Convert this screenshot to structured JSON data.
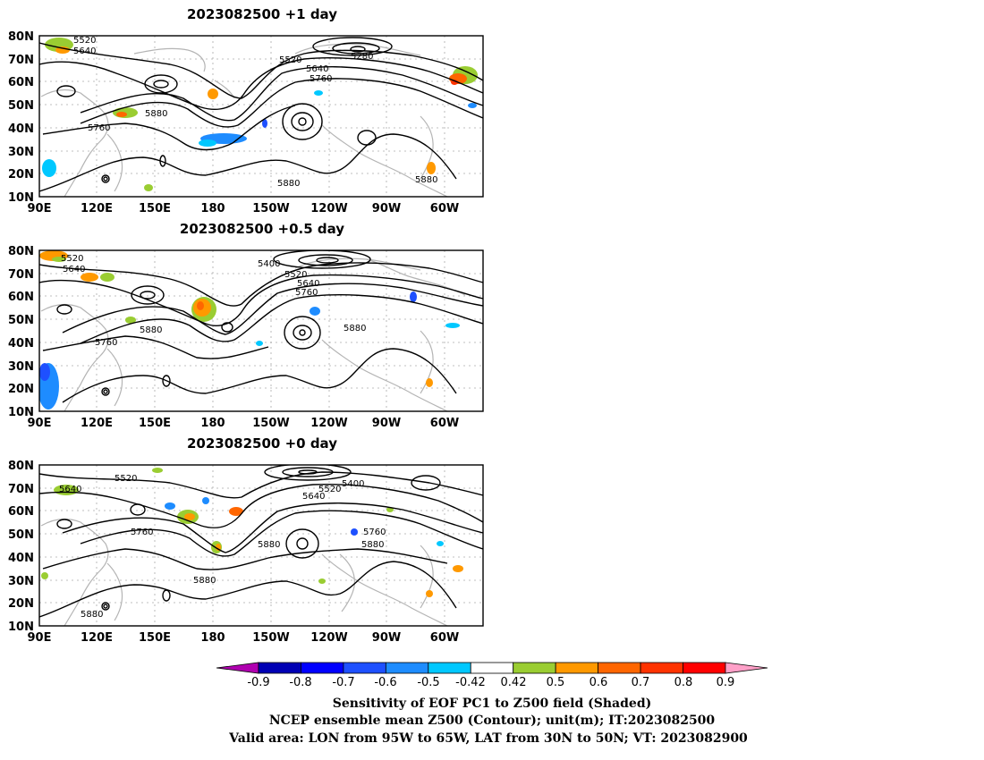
{
  "panels": [
    {
      "title": "2023082500  +1 day",
      "contour_labels": [
        "5520",
        "5640",
        "5280",
        "5520",
        "5640",
        "5760",
        "5880",
        "5760",
        "5880",
        "5880"
      ]
    },
    {
      "title": "2023082500  +0.5 day",
      "contour_labels": [
        "5520",
        "5640",
        "5400",
        "5520",
        "5640",
        "5760",
        "5880",
        "5760",
        "5880"
      ]
    },
    {
      "title": "2023082500  +0 day",
      "contour_labels": [
        "5640",
        "5520",
        "5400",
        "5520",
        "5640",
        "5760",
        "5760",
        "5880",
        "5880",
        "5880",
        "5880"
      ]
    }
  ],
  "axes": {
    "lat_ticks": [
      "80N",
      "70N",
      "60N",
      "50N",
      "40N",
      "30N",
      "20N",
      "10N"
    ],
    "lon_ticks": [
      "90E",
      "120E",
      "150E",
      "180",
      "150W",
      "120W",
      "90W",
      "60W"
    ]
  },
  "colorbar": {
    "labels": [
      "-0.9",
      "-0.8",
      "-0.7",
      "-0.6",
      "-0.5",
      "-0.42",
      "0.42",
      "0.5",
      "0.6",
      "0.7",
      "0.8",
      "0.9"
    ],
    "colors": [
      "#b000b0",
      "#0000b4",
      "#0000ff",
      "#1e50ff",
      "#1e8cff",
      "#00c8ff",
      "#ffffff",
      "#9acd32",
      "#ff9900",
      "#ff6600",
      "#ff3300",
      "#ff0000",
      "#ffa0c8"
    ]
  },
  "caption": {
    "line1": "Sensitivity of EOF PC1 to Z500 field (Shaded)",
    "line2": "NCEP ensemble mean Z500 (Contour); unit(m); IT:2023082500",
    "line3": "Valid area: LON from 95W to 65W, LAT from 30N to 50N; VT: 2023082900"
  }
}
